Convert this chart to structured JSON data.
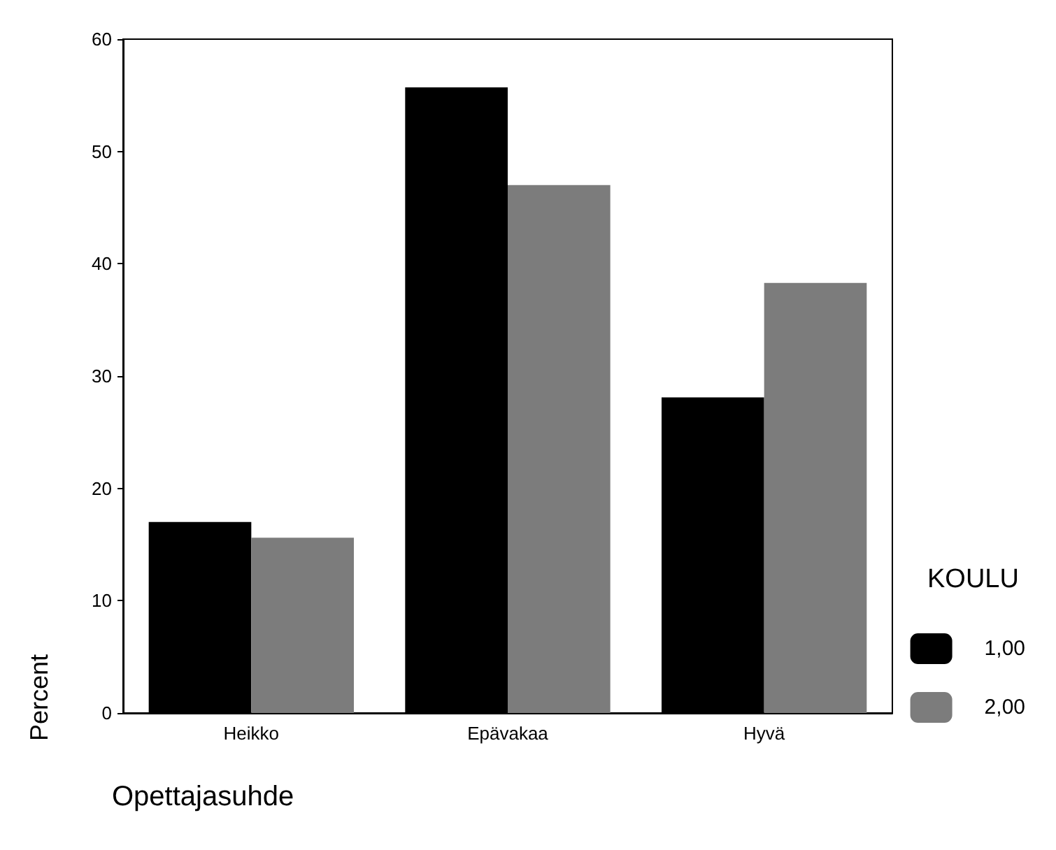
{
  "chart_data": {
    "type": "bar",
    "xlabel": "Opettajasuhde",
    "ylabel": "Percent",
    "legend_title": "KOULU",
    "categories": [
      "Heikko",
      "Epävakaa",
      "Hyvä"
    ],
    "series": [
      {
        "name": "1,00",
        "color": "#000000",
        "values": [
          17.0,
          55.7,
          28.1
        ]
      },
      {
        "name": "2,00",
        "color": "#7c7c7c",
        "values": [
          15.6,
          47.0,
          38.3
        ]
      }
    ],
    "ylim": [
      0,
      60
    ],
    "yticks": [
      0,
      10,
      20,
      30,
      40,
      50,
      60
    ],
    "grid": false,
    "legend": "right"
  }
}
